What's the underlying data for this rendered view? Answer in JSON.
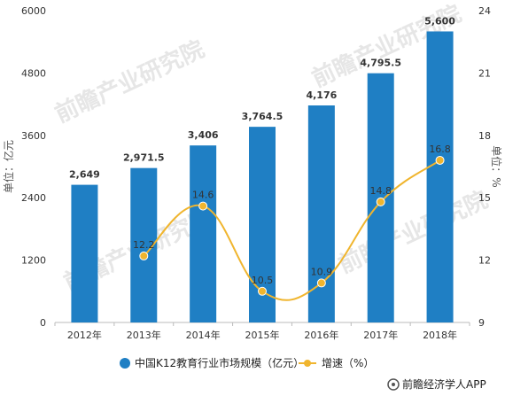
{
  "chart_data": {
    "type": "bar",
    "categories": [
      "2012年",
      "2013年",
      "2014年",
      "2015年",
      "2016年",
      "2017年",
      "2018年"
    ],
    "series": [
      {
        "name": "中国K12教育行业市场规模（亿元）",
        "type": "bar",
        "axis": "left",
        "values": [
          2649,
          2971.5,
          3406,
          3764.5,
          4176,
          4795.5,
          5600
        ],
        "labels": [
          "2,649",
          "2,971.5",
          "3,406",
          "3,764.5",
          "4,176",
          "4,795.5",
          "5,600"
        ],
        "color": "#1f7fc4"
      },
      {
        "name": "增速（%）",
        "type": "line",
        "axis": "right",
        "values": [
          null,
          12.2,
          14.6,
          10.5,
          10.9,
          14.8,
          16.8
        ],
        "labels": [
          "",
          "12.2",
          "14.6",
          "10.5",
          "10.9",
          "14.8",
          "16.8"
        ],
        "color": "#f0b52e"
      }
    ],
    "y_left": {
      "label": "单位：亿元",
      "ylim": [
        0,
        6000
      ],
      "ticks": [
        "0",
        "1200",
        "2400",
        "3600",
        "4800",
        "6000"
      ]
    },
    "y_right": {
      "label": "单位：%",
      "ylim": [
        9,
        24
      ],
      "ticks": [
        "9",
        "12",
        "15",
        "18",
        "21",
        "24"
      ]
    },
    "grid": false,
    "legend_position": "bottom"
  },
  "source": "前瞻经济学人APP",
  "watermark": "前瞻产业研究院"
}
